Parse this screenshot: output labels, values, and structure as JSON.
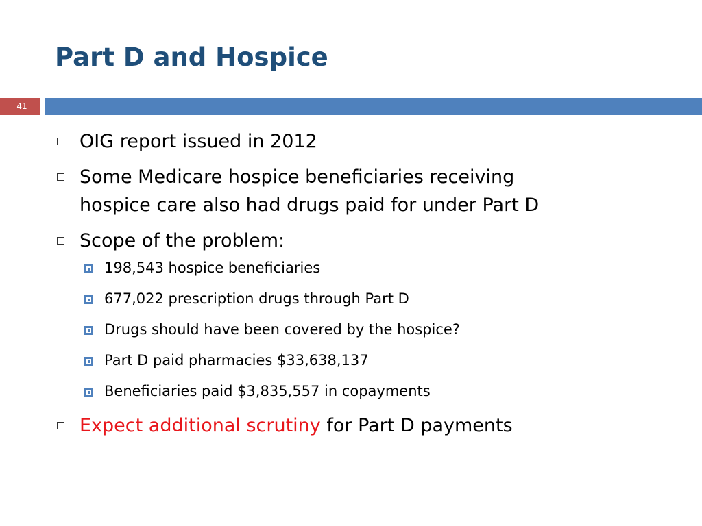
{
  "slide": {
    "title": "Part D and Hospice",
    "page_number": "41"
  },
  "colors": {
    "title": "#1f4e79",
    "header_band": "#4f81bd",
    "page_badge": "#c0504d",
    "accent": "#e8161b"
  },
  "bullets": {
    "b1": "OIG report issued in 2012",
    "b2_line1": "Some Medicare hospice beneficiaries receiving",
    "b2_line2": "hospice care also had drugs paid for under Part D",
    "b3": "Scope of the problem:",
    "sub": [
      "198,543 hospice beneficiaries",
      "677,022 prescription drugs through Part D",
      "Drugs should have been covered by the hospice?",
      "Part D paid pharmacies $33,638,137",
      "Beneficiaries paid $3,835,557 in copayments"
    ],
    "b4_accent": "Expect additional scrutiny",
    "b4_rest": " for Part D payments"
  },
  "icons": {
    "level1_bullet": "hollow-square-icon",
    "level2_bullet": "filled-square-bullet-icon"
  }
}
